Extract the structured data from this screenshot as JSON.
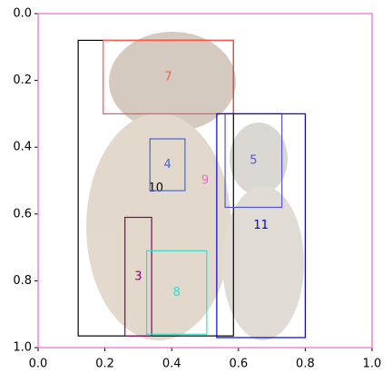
{
  "chart_data": {
    "type": "boxes",
    "xlim": [
      0,
      1
    ],
    "ylim": [
      1,
      0
    ],
    "xticks": [
      {
        "value": 0,
        "label": "0.0"
      },
      {
        "value": 0.2,
        "label": "0.2"
      },
      {
        "value": 0.4,
        "label": "0.4"
      },
      {
        "value": 0.6,
        "label": "0.6"
      },
      {
        "value": 0.8,
        "label": "0.8"
      },
      {
        "value": 1,
        "label": "1.0"
      }
    ],
    "yticks": [
      {
        "value": 0,
        "label": "0.0"
      },
      {
        "value": 0.2,
        "label": "0.2"
      },
      {
        "value": 0.4,
        "label": "0.4"
      },
      {
        "value": 0.6,
        "label": "0.6"
      },
      {
        "value": 0.8,
        "label": "0.8"
      },
      {
        "value": 1,
        "label": "1.0"
      }
    ],
    "boxes": [
      {
        "label": "9",
        "color": "#ee66cc",
        "x0": 0,
        "y0": 0,
        "x1": 1,
        "y1": 1
      },
      {
        "label": "10",
        "color": "#000000",
        "x0": 0.12,
        "y0": 0.08,
        "x1": 0.585,
        "y1": 0.965
      },
      {
        "label": "7",
        "color": "#ff5544",
        "x0": 0.195,
        "y0": 0.08,
        "x1": 0.585,
        "y1": 0.3
      },
      {
        "label": "4",
        "color": "#4466dd",
        "x0": 0.335,
        "y0": 0.375,
        "x1": 0.44,
        "y1": 0.53
      },
      {
        "label": "5",
        "color": "#5555dd",
        "x0": 0.56,
        "y0": 0.3,
        "x1": 0.73,
        "y1": 0.58
      },
      {
        "label": "11",
        "color": "#0000ee",
        "x0": 0.535,
        "y0": 0.3,
        "x1": 0.8,
        "y1": 0.97
      },
      {
        "label": "3",
        "color": "#880066",
        "x0": 0.26,
        "y0": 0.61,
        "x1": 0.34,
        "y1": 0.965
      },
      {
        "label": "8",
        "color": "#33ddcc",
        "x0": 0.325,
        "y0": 0.71,
        "x1": 0.505,
        "y1": 0.96
      }
    ]
  }
}
